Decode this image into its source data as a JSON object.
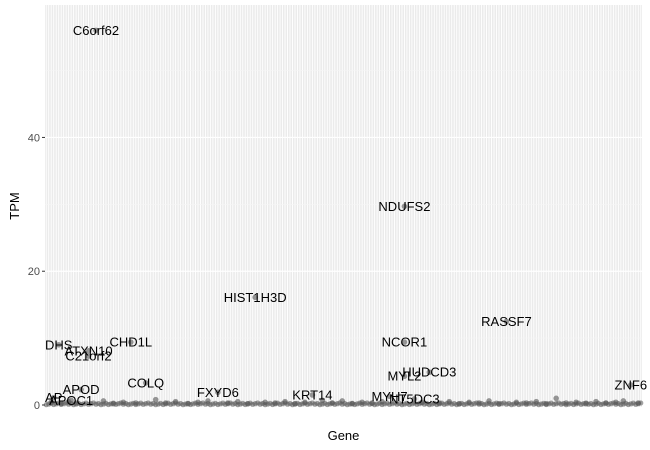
{
  "chart_data": {
    "type": "scatter",
    "title": "",
    "xlabel": "Gene",
    "ylabel": "TPM",
    "ylim": [
      -0.3,
      59.8
    ],
    "y_ticks": [
      0,
      20,
      40
    ],
    "y_tick_labels": [
      "0",
      "20",
      "40"
    ],
    "x_tick_labels_shown": false,
    "x_count": 240,
    "background": "#ebebeb",
    "grid": true,
    "point_color": "#555555",
    "labeled_points": [
      {
        "x": 20,
        "y": 56.0,
        "label": "C6orf62"
      },
      {
        "x": 144,
        "y": 29.7,
        "label": "NDUFS2"
      },
      {
        "x": 84,
        "y": 16.1,
        "label": "HIST1H3D"
      },
      {
        "x": 185,
        "y": 12.5,
        "label": "RASSF7"
      },
      {
        "x": 144,
        "y": 9.4,
        "label": "NCOR1"
      },
      {
        "x": 34,
        "y": 9.4,
        "label": "CHD1L"
      },
      {
        "x": 5,
        "y": 9.0,
        "label": "DHS"
      },
      {
        "x": 17,
        "y": 8.1,
        "label": "ATXN10"
      },
      {
        "x": 17,
        "y": 7.3,
        "label": "C21orf2"
      },
      {
        "x": 154,
        "y": 4.9,
        "label": "HUDCD3"
      },
      {
        "x": 144,
        "y": 4.3,
        "label": "MYL2"
      },
      {
        "x": 40,
        "y": 3.3,
        "label": "COLQ"
      },
      {
        "x": 235,
        "y": 3.0,
        "label": "ZNF6"
      },
      {
        "x": 14,
        "y": 2.3,
        "label": "APOD"
      },
      {
        "x": 69,
        "y": 1.9,
        "label": "FXYD6"
      },
      {
        "x": 107,
        "y": 1.5,
        "label": "KRT14"
      },
      {
        "x": 138,
        "y": 1.3,
        "label": "MYH7"
      },
      {
        "x": 148,
        "y": 0.9,
        "label": "NT5DC3"
      },
      {
        "x": 3,
        "y": 1.1,
        "label": "AP"
      },
      {
        "x": 10,
        "y": 0.7,
        "label": "APOC1"
      }
    ],
    "other_points": [
      {
        "x": 2,
        "y": 0.4
      },
      {
        "x": 6,
        "y": 0.2
      },
      {
        "x": 9,
        "y": 0.5
      },
      {
        "x": 12,
        "y": 0.3
      },
      {
        "x": 23,
        "y": 0.6
      },
      {
        "x": 27,
        "y": 0.2
      },
      {
        "x": 31,
        "y": 0.4
      },
      {
        "x": 36,
        "y": 0.3
      },
      {
        "x": 44,
        "y": 0.8
      },
      {
        "x": 48,
        "y": 0.3
      },
      {
        "x": 52,
        "y": 0.5
      },
      {
        "x": 57,
        "y": 0.2
      },
      {
        "x": 61,
        "y": 0.4
      },
      {
        "x": 65,
        "y": 0.6
      },
      {
        "x": 73,
        "y": 0.3
      },
      {
        "x": 77,
        "y": 0.5
      },
      {
        "x": 81,
        "y": 0.2
      },
      {
        "x": 88,
        "y": 0.4
      },
      {
        "x": 92,
        "y": 0.3
      },
      {
        "x": 96,
        "y": 0.5
      },
      {
        "x": 100,
        "y": 0.2
      },
      {
        "x": 104,
        "y": 0.4
      },
      {
        "x": 111,
        "y": 0.7
      },
      {
        "x": 115,
        "y": 0.3
      },
      {
        "x": 119,
        "y": 0.6
      },
      {
        "x": 123,
        "y": 0.2
      },
      {
        "x": 127,
        "y": 0.4
      },
      {
        "x": 131,
        "y": 0.3
      },
      {
        "x": 135,
        "y": 0.5
      },
      {
        "x": 151,
        "y": 0.4
      },
      {
        "x": 158,
        "y": 0.3
      },
      {
        "x": 162,
        "y": 0.5
      },
      {
        "x": 166,
        "y": 0.2
      },
      {
        "x": 170,
        "y": 0.4
      },
      {
        "x": 174,
        "y": 0.3
      },
      {
        "x": 178,
        "y": 0.6
      },
      {
        "x": 182,
        "y": 0.2
      },
      {
        "x": 189,
        "y": 0.4
      },
      {
        "x": 193,
        "y": 0.3
      },
      {
        "x": 197,
        "y": 0.5
      },
      {
        "x": 201,
        "y": 0.2
      },
      {
        "x": 205,
        "y": 1.0
      },
      {
        "x": 209,
        "y": 0.3
      },
      {
        "x": 213,
        "y": 0.4
      },
      {
        "x": 217,
        "y": 0.2
      },
      {
        "x": 221,
        "y": 0.5
      },
      {
        "x": 225,
        "y": 0.3
      },
      {
        "x": 229,
        "y": 0.4
      },
      {
        "x": 232,
        "y": 0.6
      },
      {
        "x": 238,
        "y": 0.3
      }
    ]
  }
}
